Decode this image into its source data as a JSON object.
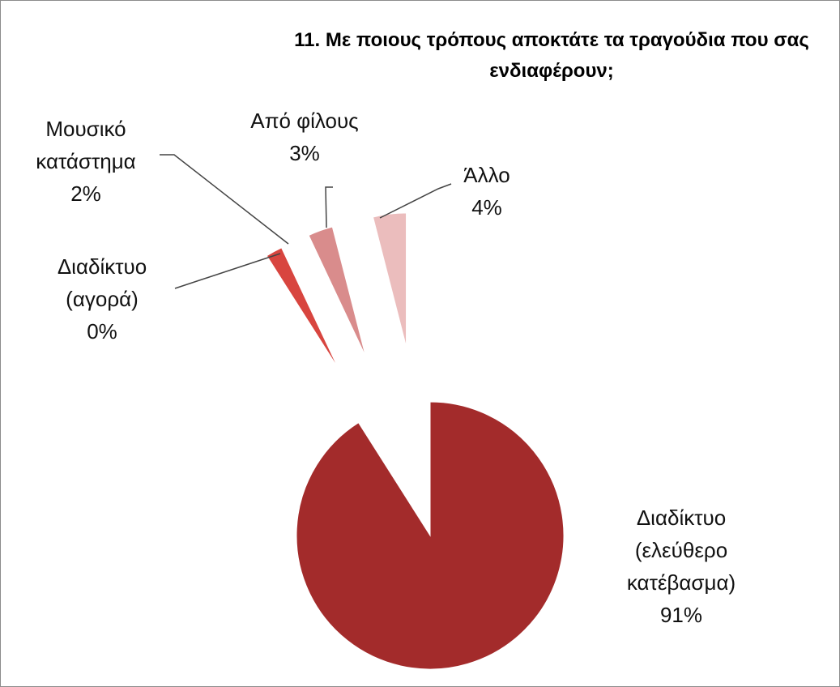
{
  "chart_data": {
    "type": "pie",
    "title": "11. Με ποιους τρόπους αποκτάτε τα τραγούδια  που σας ενδιαφέρουν;",
    "categories": [
      "Διαδίκτυο (ελεύθερο κατέβασμα)",
      "Διαδίκτυο (αγορά)",
      "Μουσικό κατάστημα",
      "Από φίλους",
      "Άλλο"
    ],
    "values": [
      91,
      0,
      2,
      3,
      4
    ],
    "value_labels": [
      "91%",
      "0%",
      "2%",
      "3%",
      "4%"
    ],
    "colors": [
      "#a32b2b",
      "#c62f2a",
      "#d8453f",
      "#d98c8c",
      "#ebbdbd"
    ]
  }
}
